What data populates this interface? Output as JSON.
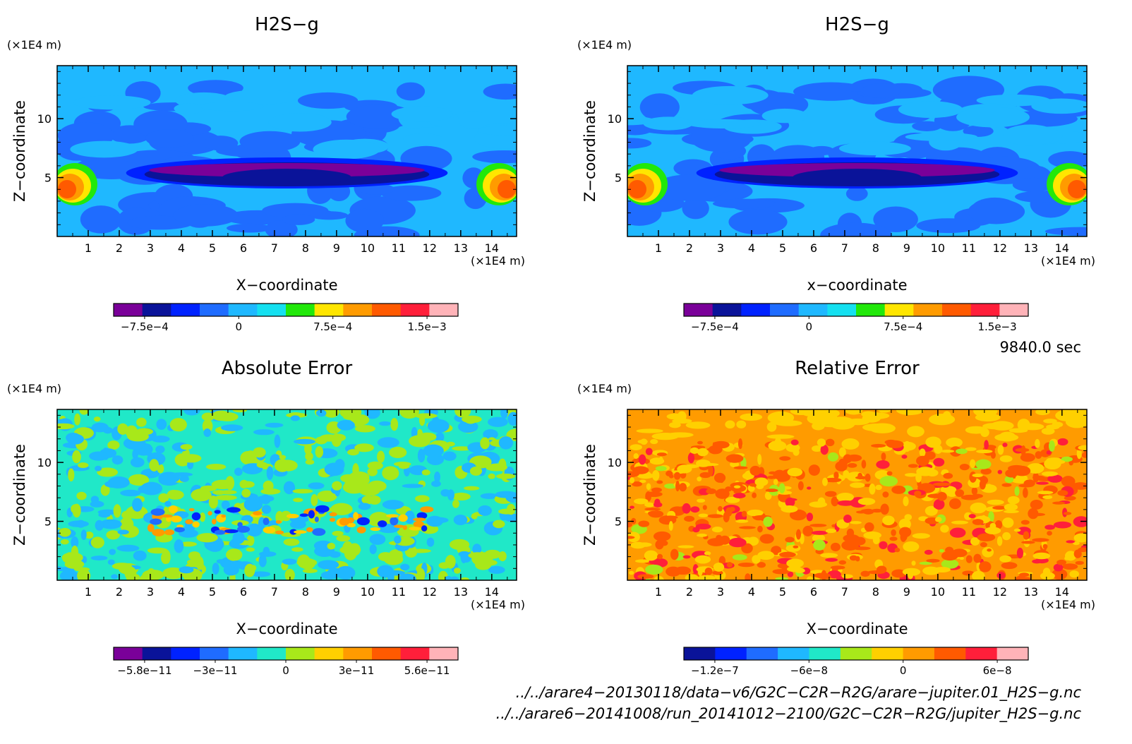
{
  "panels": [
    {
      "title": "H2S−g",
      "xlabel": "X−coordinate",
      "ylabel": "Z−coordinate",
      "xunit": "(×1E4 m)",
      "yunit": "(×1E4 m)",
      "field": "h2s",
      "colorbar": {
        "colors": [
          "#7a0099",
          "#0a1399",
          "#0022ff",
          "#1f6cff",
          "#1fb8ff",
          "#15e0f0",
          "#22e80a",
          "#ffe600",
          "#ff9b00",
          "#ff5a00",
          "#ff1f3a",
          "#ffb3b8"
        ],
        "labels": [
          "−7.5e−4",
          "0",
          "7.5e−4",
          "1.5e−3"
        ]
      }
    },
    {
      "title": "H2S−g",
      "xlabel": "x−coordinate",
      "ylabel": "Z−coordinate",
      "xunit": "(×1E4 m)",
      "yunit": "(×1E4 m)",
      "field": "h2s",
      "colorbar": {
        "colors": [
          "#7a0099",
          "#0a1399",
          "#0022ff",
          "#1f6cff",
          "#1fb8ff",
          "#15e0f0",
          "#22e80a",
          "#ffe600",
          "#ff9b00",
          "#ff5a00",
          "#ff1f3a",
          "#ffb3b8"
        ],
        "labels": [
          "−7.5e−4",
          "0",
          "7.5e−4",
          "1.5e−3"
        ]
      }
    },
    {
      "title": "Absolute Error",
      "xlabel": "X−coordinate",
      "ylabel": "Z−coordinate",
      "xunit": "(×1E4 m)",
      "yunit": "(×1E4 m)",
      "field": "abs",
      "colorbar": {
        "colors": [
          "#7a0099",
          "#0a1399",
          "#0022ff",
          "#1f6cff",
          "#1fb8ff",
          "#20e8c8",
          "#a8e81a",
          "#ffd000",
          "#ff9b00",
          "#ff5a00",
          "#ff1f3a",
          "#ffb3b8"
        ],
        "labels": [
          "−5.8e−11",
          "−3e−11",
          "0",
          "3e−11",
          "5.6e−11"
        ]
      }
    },
    {
      "title": "Relative Error",
      "xlabel": "X−coordinate",
      "ylabel": "Z−coordinate",
      "xunit": "(×1E4 m)",
      "yunit": "(×1E4 m)",
      "field": "rel",
      "colorbar": {
        "colors": [
          "#0a1399",
          "#0022ff",
          "#1f6cff",
          "#1fb8ff",
          "#20e8c8",
          "#a8e81a",
          "#ffd000",
          "#ff9b00",
          "#ff5a00",
          "#ff1f3a",
          "#ffb3b8"
        ],
        "labels": [
          "−1.2e−7",
          "−6e−8",
          "0",
          "6e−8"
        ]
      }
    }
  ],
  "chart_data": {
    "type": "heatmap",
    "x_ticks": [
      1,
      2,
      3,
      4,
      5,
      6,
      7,
      8,
      9,
      10,
      11,
      12,
      13,
      14
    ],
    "y_ticks": [
      5,
      10
    ],
    "xlim": [
      0,
      14.8
    ],
    "ylim": [
      0,
      14.5
    ],
    "time_label": "9840.0 sec",
    "file_paths": [
      "../../arare4−20130118/data−v6/G2C−C2R−R2G/arare−jupiter.01_H2S−g.nc",
      "../../arare6−20141008/run_20141012−2100/G2C−C2R−R2G/jupiter_H2S−g.nc"
    ]
  }
}
